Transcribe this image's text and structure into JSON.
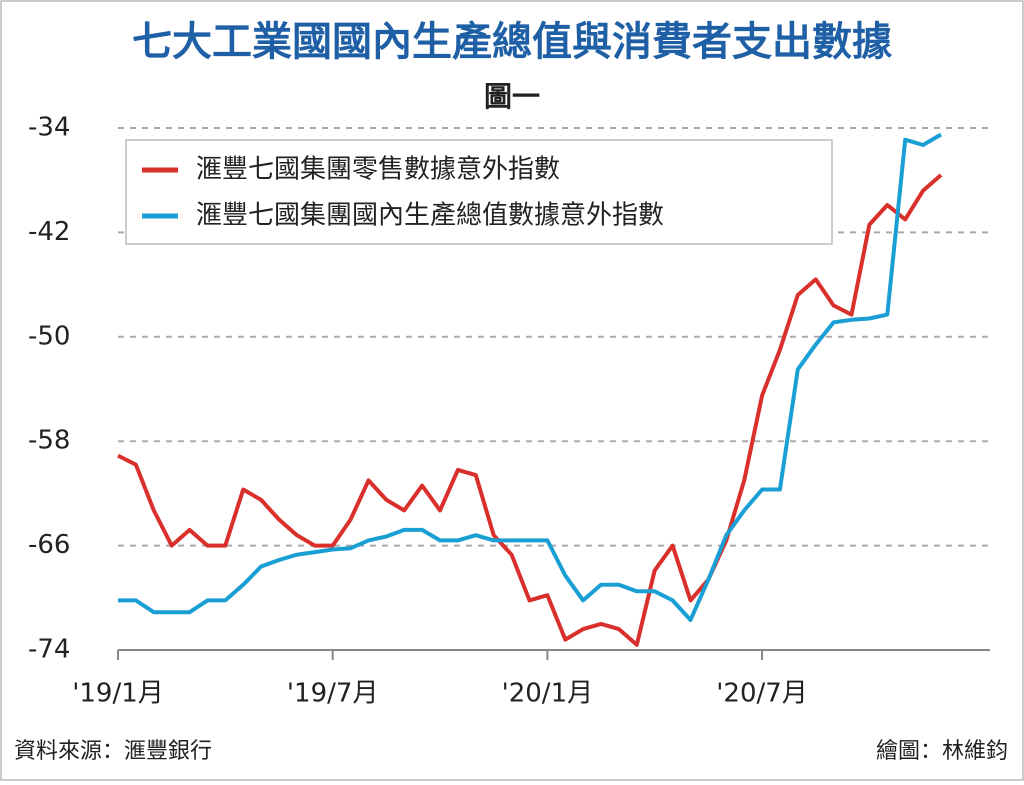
{
  "chart_data": {
    "type": "line",
    "title": "七大工業國國內生產總值與消費者支出數據",
    "subtitle": "圖一",
    "x": [
      0,
      0.5,
      1,
      1.5,
      2,
      2.5,
      3,
      3.5,
      4,
      4.5,
      5,
      5.5,
      6,
      6.5,
      7,
      7.5,
      8,
      8.5,
      9,
      9.5,
      10,
      10.5,
      11,
      11.5,
      12,
      12.5,
      13,
      13.5,
      14,
      14.5,
      15,
      15.5,
      16,
      16.5,
      17,
      17.5,
      18,
      18.5,
      19,
      19.5,
      20,
      20.5,
      21,
      21.5,
      22,
      22.5,
      23
    ],
    "series": [
      {
        "name": "滙豐七國集團零售數據意外指數",
        "color": "#d9302b",
        "values": [
          -59.1,
          -59.8,
          -63.3,
          -66,
          -64.8,
          -66,
          -66,
          -61.7,
          -62.5,
          -64,
          -65.2,
          -66,
          -66,
          -64,
          -61,
          -62.5,
          -63.3,
          -61.4,
          -63.3,
          -60.2,
          -60.6,
          -65.2,
          -66.7,
          -70.2,
          -69.8,
          -73.2,
          -72.4,
          -72,
          -72.4,
          -73.6,
          -67.9,
          -66,
          -70.2,
          -68.6,
          -65.6,
          -61,
          -54.5,
          -51,
          -46.8,
          -45.6,
          -47.6,
          -48.3,
          -41.4,
          -39.9,
          -41,
          -38.8,
          -37.6
        ]
      },
      {
        "name": "滙豐七國集團國內生產總值數據意外指數",
        "color": "#1a9fd4",
        "values": [
          -70.2,
          -70.2,
          -71.1,
          -71.1,
          -71.1,
          -70.2,
          -70.2,
          -69,
          -67.6,
          -67.1,
          -66.7,
          -66.5,
          -66.3,
          -66.2,
          -65.6,
          -65.3,
          -64.8,
          -64.8,
          -65.6,
          -65.6,
          -65.2,
          -65.6,
          -65.6,
          -65.6,
          -65.6,
          -68.3,
          -70.2,
          -69,
          -69,
          -69.5,
          -69.5,
          -70.2,
          -71.7,
          -68.6,
          -65.2,
          -63.3,
          -61.7,
          -61.7,
          -52.5,
          -50.6,
          -48.9,
          -48.7,
          -48.6,
          -48.3,
          -34.9,
          -35.3,
          -34.5
        ]
      }
    ],
    "xlim": [
      0,
      23.7
    ],
    "xticks": [
      {
        "value": 0,
        "label": "'19/1月"
      },
      {
        "value": 6,
        "label": "'19/7月"
      },
      {
        "value": 12,
        "label": "'20/1月"
      },
      {
        "value": 18,
        "label": "'20/7月"
      }
    ],
    "ylim": [
      -74,
      -34
    ],
    "yticks": [
      -34,
      -42,
      -50,
      -58,
      -66,
      -74
    ],
    "grid": true,
    "legend": "upper-left",
    "source": "資料來源：滙豐銀行",
    "credit": "繪圖：林維鈞"
  }
}
